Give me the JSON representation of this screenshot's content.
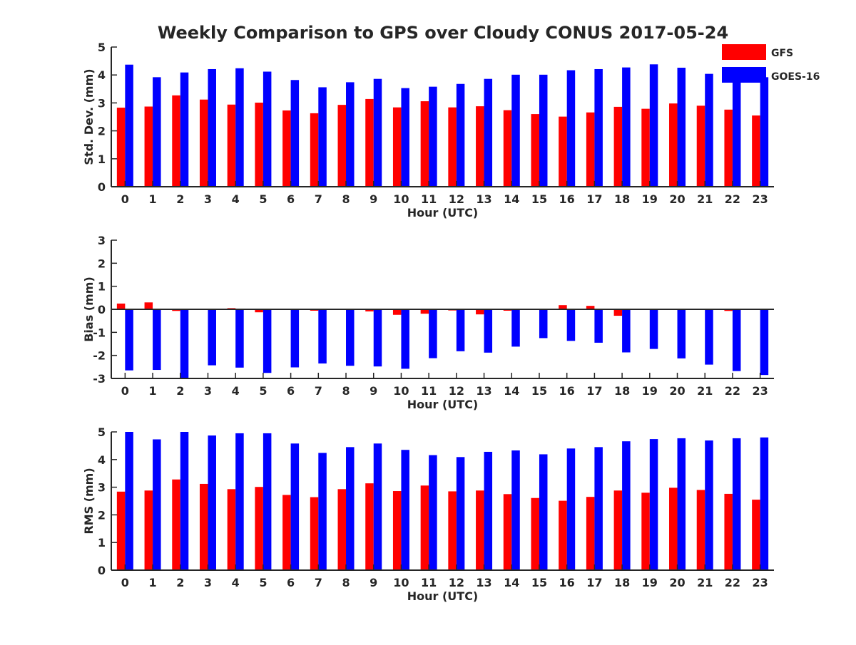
{
  "title": "Weekly Comparison to GPS over Cloudy CONUS 2017-05-24",
  "legend": [
    {
      "name": "GFS",
      "color": "#ff0000"
    },
    {
      "name": "GOES-16",
      "color": "#0000ff"
    }
  ],
  "chart_data": [
    {
      "type": "bar",
      "ylabel": "Std. Dev. (mm)",
      "xlabel": "Hour (UTC)",
      "ylim": [
        0,
        5
      ],
      "yticks": [
        "0",
        "1",
        "2",
        "3",
        "4",
        "5"
      ],
      "categories": [
        "0",
        "1",
        "2",
        "3",
        "4",
        "5",
        "6",
        "7",
        "8",
        "9",
        "10",
        "11",
        "12",
        "13",
        "14",
        "15",
        "16",
        "17",
        "18",
        "19",
        "20",
        "21",
        "22",
        "23"
      ],
      "series": [
        {
          "name": "GFS",
          "color": "#ff0000",
          "values": [
            2.83,
            2.87,
            3.27,
            3.12,
            2.94,
            3.01,
            2.73,
            2.63,
            2.93,
            3.14,
            2.84,
            3.06,
            2.84,
            2.88,
            2.74,
            2.6,
            2.51,
            2.66,
            2.86,
            2.79,
            2.98,
            2.9,
            2.76,
            2.55
          ]
        },
        {
          "name": "GOES-16",
          "color": "#0000ff",
          "values": [
            4.37,
            3.92,
            4.09,
            4.21,
            4.24,
            4.12,
            3.82,
            3.56,
            3.74,
            3.86,
            3.53,
            3.58,
            3.68,
            3.86,
            4.01,
            4.01,
            4.17,
            4.21,
            4.27,
            4.38,
            4.26,
            4.04,
            3.95,
            3.92
          ]
        }
      ]
    },
    {
      "type": "bar",
      "ylabel": "Bias (mm)",
      "xlabel": "Hour (UTC)",
      "ylim": [
        -3,
        3
      ],
      "yticks": [
        "-3",
        "-2",
        "-1",
        "0",
        "1",
        "2",
        "3"
      ],
      "categories": [
        "0",
        "1",
        "2",
        "3",
        "4",
        "5",
        "6",
        "7",
        "8",
        "9",
        "10",
        "11",
        "12",
        "13",
        "14",
        "15",
        "16",
        "17",
        "18",
        "19",
        "20",
        "21",
        "22",
        "23"
      ],
      "series": [
        {
          "name": "GFS",
          "color": "#ff0000",
          "values": [
            0.25,
            0.3,
            -0.07,
            0.0,
            0.05,
            -0.13,
            0.02,
            -0.06,
            -0.03,
            -0.09,
            -0.24,
            -0.19,
            -0.05,
            -0.22,
            -0.06,
            0.0,
            0.18,
            0.15,
            -0.28,
            0.0,
            0.03,
            0.03,
            -0.07,
            0.02
          ]
        },
        {
          "name": "GOES-16",
          "color": "#0000ff",
          "values": [
            -2.65,
            -2.63,
            -3.02,
            -2.43,
            -2.53,
            -2.76,
            -2.52,
            -2.35,
            -2.45,
            -2.48,
            -2.58,
            -2.12,
            -1.82,
            -1.88,
            -1.62,
            -1.25,
            -1.37,
            -1.45,
            -1.87,
            -1.72,
            -2.13,
            -2.4,
            -2.68,
            -2.85
          ]
        }
      ]
    },
    {
      "type": "bar",
      "ylabel": "RMS (mm)",
      "xlabel": "Hour (UTC)",
      "ylim": [
        0,
        5
      ],
      "yticks": [
        "0",
        "1",
        "2",
        "3",
        "4",
        "5"
      ],
      "categories": [
        "0",
        "1",
        "2",
        "3",
        "4",
        "5",
        "6",
        "7",
        "8",
        "9",
        "10",
        "11",
        "12",
        "13",
        "14",
        "15",
        "16",
        "17",
        "18",
        "19",
        "20",
        "21",
        "22",
        "23"
      ],
      "series": [
        {
          "name": "GFS",
          "color": "#ff0000",
          "values": [
            2.84,
            2.88,
            3.28,
            3.12,
            2.93,
            3.01,
            2.72,
            2.64,
            2.93,
            3.14,
            2.86,
            3.06,
            2.85,
            2.88,
            2.75,
            2.61,
            2.51,
            2.65,
            2.88,
            2.8,
            2.98,
            2.9,
            2.76,
            2.55
          ]
        },
        {
          "name": "GOES-16",
          "color": "#0000ff",
          "values": [
            5.0,
            4.73,
            5.0,
            4.87,
            4.95,
            4.95,
            4.58,
            4.24,
            4.45,
            4.58,
            4.35,
            4.16,
            4.09,
            4.28,
            4.33,
            4.19,
            4.4,
            4.45,
            4.66,
            4.74,
            4.77,
            4.69,
            4.77,
            4.8
          ]
        }
      ]
    }
  ]
}
